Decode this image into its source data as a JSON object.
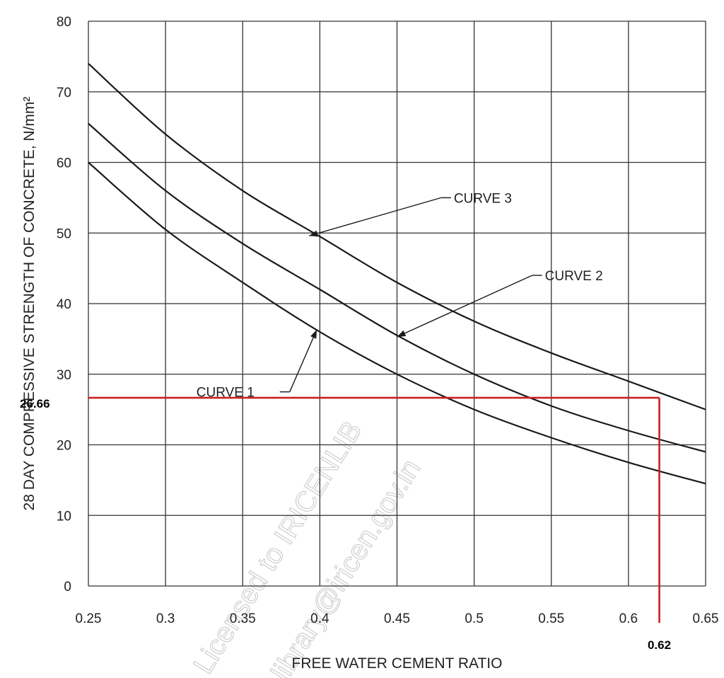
{
  "chart_data": {
    "type": "line",
    "xlabel": "FREE WATER CEMENT RATIO",
    "ylabel": "28 DAY COMPRESSIVE STRENGTH OF CONCRETE,  N/mm²",
    "xlim": [
      0.25,
      0.65
    ],
    "ylim": [
      0,
      80
    ],
    "x_ticks": [
      "0.25",
      "0.3",
      "0.35",
      "0.4",
      "0.45",
      "0.5",
      "0.55",
      "0.6",
      "0.65"
    ],
    "y_ticks": [
      "0",
      "10",
      "20",
      "30",
      "40",
      "50",
      "60",
      "70",
      "80"
    ],
    "grid": true,
    "series": [
      {
        "name": "CURVE 1",
        "x": [
          0.25,
          0.3,
          0.35,
          0.4,
          0.45,
          0.5,
          0.55,
          0.6,
          0.65
        ],
        "y": [
          60,
          50.5,
          43,
          36,
          30,
          25,
          21,
          17.5,
          14.5
        ]
      },
      {
        "name": "CURVE 2",
        "x": [
          0.25,
          0.3,
          0.35,
          0.4,
          0.45,
          0.5,
          0.55,
          0.6,
          0.65
        ],
        "y": [
          65.5,
          56,
          48.5,
          42,
          35.5,
          30,
          25.5,
          22,
          19
        ]
      },
      {
        "name": "CURVE 3",
        "x": [
          0.25,
          0.3,
          0.35,
          0.4,
          0.45,
          0.5,
          0.55,
          0.6,
          0.65
        ],
        "y": [
          74,
          64,
          56,
          49.5,
          43,
          37.5,
          33,
          29,
          25
        ]
      }
    ],
    "annotations": [
      {
        "text": "CURVE 3",
        "points_to": {
          "x": 0.393,
          "y": 49.6
        },
        "label_at": {
          "x": 0.485,
          "y": 55
        }
      },
      {
        "text": "CURVE 2",
        "points_to": {
          "x": 0.45,
          "y": 35.3
        },
        "label_at": {
          "x": 0.544,
          "y": 44
        }
      },
      {
        "text": "CURVE 1",
        "points_to": {
          "x": 0.398,
          "y": 36.3
        },
        "label_at": {
          "x": 0.32,
          "y": 27.5
        }
      }
    ],
    "reference": {
      "x": 0.62,
      "y": 26.66,
      "x_label": "0.62",
      "y_label": "26.66",
      "color": "#cc1f1f"
    }
  },
  "watermark": {
    "line1": "Licensed to IRICENLIB",
    "line2": "library@iricen.gov.in"
  }
}
